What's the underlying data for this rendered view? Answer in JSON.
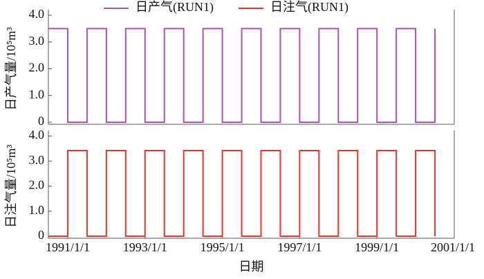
{
  "chart_data": [
    {
      "type": "line",
      "ylabel": "日产气量/10⁵m³",
      "xlim": [
        "1990/7/1",
        "2001/1/1"
      ],
      "ylim": [
        0,
        4
      ],
      "yticks": [
        0,
        {
          "value": 1,
          "label": "1.0"
        },
        {
          "value": 2,
          "label": "2.0"
        },
        {
          "value": 3,
          "label": "3.0"
        },
        {
          "value": 4,
          "label": "4.0"
        }
      ],
      "x": [
        "1990/7/1",
        "1991/1/1",
        "1991/1/1",
        "1991/7/1",
        "1991/7/1",
        "1992/1/1",
        "1992/1/1",
        "1992/7/1",
        "1992/7/1",
        "1993/1/1",
        "1993/1/1",
        "1993/7/1",
        "1993/7/1",
        "1994/1/1",
        "1994/1/1",
        "1994/7/1",
        "1994/7/1",
        "1995/1/1",
        "1995/1/1",
        "1995/7/1",
        "1995/7/1",
        "1996/1/1",
        "1996/1/1",
        "1996/7/1",
        "1996/7/1",
        "1997/1/1",
        "1997/1/1",
        "1997/7/1",
        "1997/7/1",
        "1998/1/1",
        "1998/1/1",
        "1998/7/1",
        "1998/7/1",
        "1999/1/1",
        "1999/1/1",
        "1999/7/1",
        "1999/7/1",
        "2000/1/1",
        "2000/1/1",
        "2000/7/1",
        "2000/7/1"
      ],
      "series": [
        {
          "name": "日产气(RUN1)",
          "color": "#a855a8",
          "values": [
            3.5,
            3.5,
            0,
            0,
            3.5,
            3.5,
            0,
            0,
            3.5,
            3.5,
            0,
            0,
            3.5,
            3.5,
            0,
            0,
            3.5,
            3.5,
            0,
            0,
            3.5,
            3.5,
            0,
            0,
            3.5,
            3.5,
            0,
            0,
            3.5,
            3.5,
            0,
            0,
            3.5,
            3.5,
            0,
            0,
            3.5,
            3.5,
            0,
            0,
            3.5
          ]
        }
      ]
    },
    {
      "type": "line",
      "ylabel": "日注气量/10⁵m³",
      "xlabel": "日期",
      "xlim": [
        "1990/7/1",
        "2001/1/1"
      ],
      "ylim": [
        0,
        4
      ],
      "yticks": [
        0,
        {
          "value": 1,
          "label": "1.0"
        },
        {
          "value": 2,
          "label": "2.0"
        },
        {
          "value": 3,
          "label": "3.0"
        },
        {
          "value": 4,
          "label": "4.0"
        }
      ],
      "xticks": [
        "1991/1/1",
        "1993/1/1",
        "1995/1/1",
        "1997/1/1",
        "1999/1/1",
        "2001/1/1"
      ],
      "x": [
        "1990/7/1",
        "1991/1/1",
        "1991/1/1",
        "1991/7/1",
        "1991/7/1",
        "1992/1/1",
        "1992/1/1",
        "1992/7/1",
        "1992/7/1",
        "1993/1/1",
        "1993/1/1",
        "1993/7/1",
        "1993/7/1",
        "1994/1/1",
        "1994/1/1",
        "1994/7/1",
        "1994/7/1",
        "1995/1/1",
        "1995/1/1",
        "1995/7/1",
        "1995/7/1",
        "1996/1/1",
        "1996/1/1",
        "1996/7/1",
        "1996/7/1",
        "1997/1/1",
        "1997/1/1",
        "1997/7/1",
        "1997/7/1",
        "1998/1/1",
        "1998/1/1",
        "1998/7/1",
        "1998/7/1",
        "1999/1/1",
        "1999/1/1",
        "1999/7/1",
        "1999/7/1",
        "2000/1/1",
        "2000/1/1",
        "2000/7/1",
        "2000/7/1"
      ],
      "series": [
        {
          "name": "日注气(RUN1)",
          "color": "#e8352a",
          "values": [
            0,
            0,
            3.42,
            3.42,
            0,
            0,
            3.42,
            3.42,
            0,
            0,
            3.42,
            3.42,
            0,
            0,
            3.42,
            3.42,
            0,
            0,
            3.42,
            3.42,
            0,
            0,
            3.42,
            3.42,
            0,
            0,
            3.42,
            3.42,
            0,
            0,
            3.42,
            3.42,
            0,
            0,
            3.42,
            3.42,
            0,
            0,
            3.42,
            3.42,
            0
          ]
        }
      ]
    }
  ]
}
